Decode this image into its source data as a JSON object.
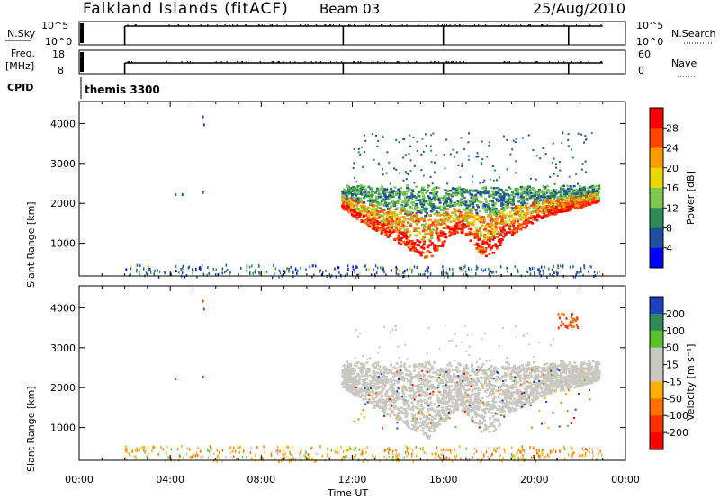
{
  "header": {
    "title": "Falkland Islands (fitACF)",
    "beam": "Beam 03",
    "date": "25/Aug/2010"
  },
  "status_panels": {
    "nsky_label": "N.Sky",
    "nsky_ticks": [
      "10^5",
      "10^0"
    ],
    "nsearch_label": "N.Search",
    "nsearch_ticks": [
      "10^5",
      "10^0"
    ],
    "freq_label_1": "Freq.",
    "freq_label_2": "[MHz]",
    "freq_ticks": [
      "18",
      "8"
    ],
    "nave_label": "Nave",
    "nave_ticks": [
      "60",
      "0"
    ],
    "cpid_label": "CPID",
    "cpid_value": "themis 3300"
  },
  "chart_data": [
    {
      "type": "heatmap",
      "name": "power-panel",
      "ylabel": "Slant Range [km]",
      "ylim": [
        180,
        4550
      ],
      "yticks": [
        "1000",
        "2000",
        "3000",
        "4000"
      ],
      "xlim_hours": [
        0,
        24
      ],
      "colorbar_label": "Power [dB]",
      "colorbar_ticks": [
        "28",
        "24",
        "20",
        "16",
        "12",
        "8",
        "4"
      ],
      "colorbar_colors": [
        "#ff0000",
        "#ff4500",
        "#ff9a00",
        "#e8d800",
        "#7ec850",
        "#2e8b57",
        "#1f4f9f",
        "#0000ff"
      ],
      "features": [
        {
          "kind": "main-echo",
          "x_start": 11.5,
          "x_end": 23.0,
          "range_km": [
            600,
            2500
          ]
        },
        {
          "kind": "near-range",
          "x_start": 2.0,
          "x_end": 23.0,
          "range_km": [
            180,
            500
          ]
        }
      ]
    },
    {
      "type": "heatmap",
      "name": "velocity-panel",
      "ylabel": "Slant Range [km]",
      "ylim": [
        180,
        4550
      ],
      "yticks": [
        "1000",
        "2000",
        "3000",
        "4000"
      ],
      "xlim_hours": [
        0,
        24
      ],
      "xticks": [
        "00:00",
        "04:00",
        "08:00",
        "12:00",
        "16:00",
        "20:00",
        "00:00"
      ],
      "xlabel": "Time UT",
      "colorbar_label": "Velocity [m s⁻¹]",
      "colorbar_ticks": [
        "200",
        "100",
        "50",
        "15",
        "-15",
        "-50",
        "-100",
        "-200"
      ],
      "colorbar_colors": [
        "#1f3fbf",
        "#2e8b57",
        "#5cc02e",
        "#c8c8c0",
        "#c8c8c0",
        "#ffb000",
        "#ff7000",
        "#ff3000",
        "#ff0000"
      ],
      "features": [
        {
          "kind": "ground-scatter",
          "x_start": 11.5,
          "x_end": 23.0,
          "range_km": [
            700,
            2700
          ]
        },
        {
          "kind": "near-range",
          "x_start": 2.0,
          "x_end": 23.0,
          "range_km": [
            180,
            500
          ]
        }
      ]
    }
  ]
}
